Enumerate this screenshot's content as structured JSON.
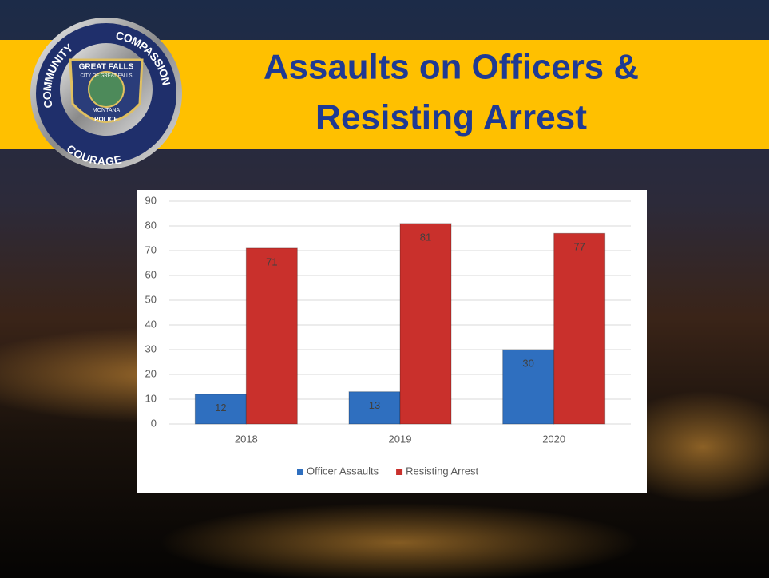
{
  "slide": {
    "title_lines": [
      "Assaults on Officers &",
      "Resisting Arrest"
    ],
    "badge": {
      "top_left": "COMMUNITY",
      "top_right": "COMPASSION",
      "bottom": "COURAGE",
      "shield_top": "GREAT FALLS",
      "shield_ring": "CITY OF GREAT FALLS",
      "shield_state": "MONTANA",
      "shield_bottom": "POLICE"
    }
  },
  "chart_data": {
    "type": "bar",
    "categories": [
      "2018",
      "2019",
      "2020"
    ],
    "series": [
      {
        "name": "Officer Assaults",
        "color": "#2f6fbf",
        "values": [
          12,
          13,
          30
        ]
      },
      {
        "name": "Resisting Arrest",
        "color": "#c9302c",
        "values": [
          71,
          81,
          77
        ]
      }
    ],
    "ylim": [
      0,
      90
    ],
    "yticks": [
      0,
      10,
      20,
      30,
      40,
      50,
      60,
      70,
      80,
      90
    ],
    "grid": true,
    "legend": "bottom",
    "data_labels": true
  }
}
